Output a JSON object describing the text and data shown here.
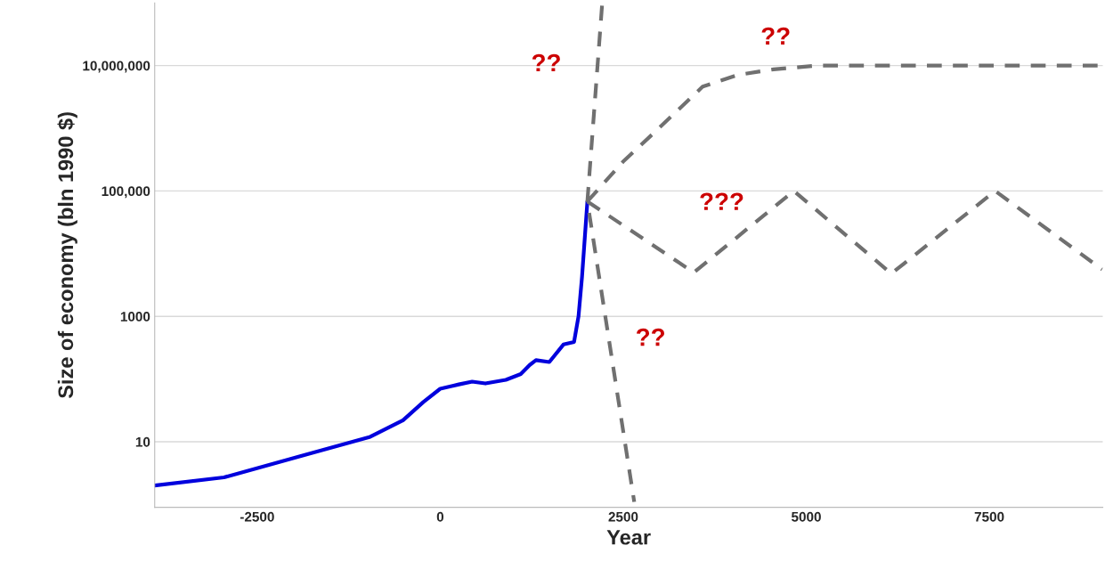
{
  "chart_data": {
    "type": "line",
    "xlabel": "Year",
    "ylabel": "Size of economy (bln 1990 $)",
    "log": "y",
    "grid": "y",
    "legend": false,
    "xlim": [
      -3900,
      9050
    ],
    "xticks": [
      -2500,
      0,
      2500,
      5000,
      7500
    ],
    "ylim": [
      0.9,
      100000000
    ],
    "yticks": [
      10,
      1000,
      {
        "value": 100000,
        "label": "100,000"
      },
      {
        "value": 10000000,
        "label": "10,000,000"
      }
    ],
    "series": [
      {
        "color": "#0000dd",
        "line_style": "solid",
        "x": [
          -3900,
          -2954,
          -956,
          -508,
          -230,
          0,
          254,
          436,
          617,
          896,
          1100,
          1223,
          1308,
          1490,
          1683,
          1828,
          1889,
          1937,
          2010
        ],
        "values": [
          2.0,
          2.7,
          12,
          22,
          43,
          70,
          82,
          91,
          85,
          97,
          120,
          168,
          200,
          187,
          355,
          390,
          1000,
          4300,
          68000
        ]
      },
      {
        "color": "#707070",
        "line_style": "dashed",
        "x": [
          2210,
          2010,
          2650
        ],
        "values": [
          90000000,
          68000,
          1.1
        ]
      },
      {
        "color": "#707070",
        "line_style": "dashed",
        "x": [
          2010,
          2494,
          2978,
          3584,
          4068,
          4552,
          5158,
          9043
        ],
        "values": [
          68000,
          290000,
          980000,
          4600000,
          7100000,
          8700000,
          10000000,
          10000000
        ]
      },
      {
        "color": "#707070",
        "line_style": "dashed",
        "x": [
          2010,
          3463,
          4830,
          6162,
          7580,
          9040
        ],
        "values": [
          68000,
          5000,
          100000,
          4800,
          100000,
          5600
        ]
      }
    ],
    "annotations": [
      "??",
      "??",
      "???",
      "??"
    ]
  }
}
